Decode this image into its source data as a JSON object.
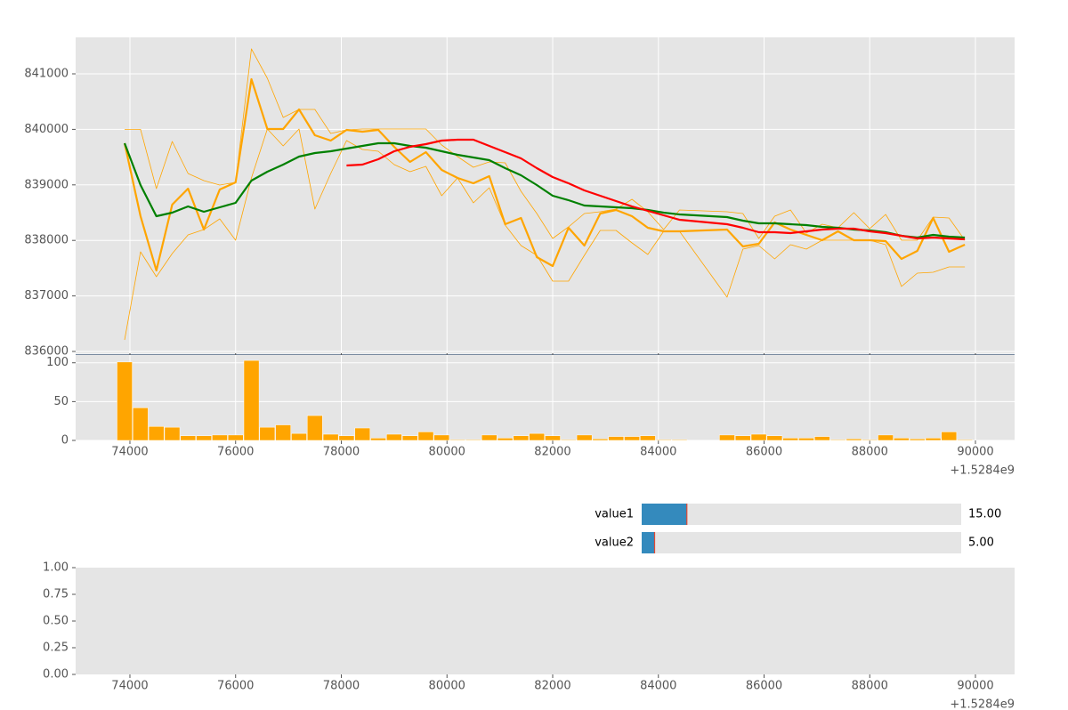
{
  "chart_data": [
    {
      "type": "line",
      "grid": true,
      "show_xtick_labels": false,
      "xlim": [
        72973,
        90741
      ],
      "xticks": [
        74000,
        76000,
        78000,
        80000,
        82000,
        84000,
        86000,
        88000,
        90000
      ],
      "ylim": [
        835968,
        841657
      ],
      "yticks": [
        836000,
        837000,
        838000,
        839000,
        840000,
        841000
      ],
      "x": [
        73900,
        74200,
        74500,
        74800,
        75100,
        75400,
        75700,
        76000,
        76300,
        76600,
        76900,
        77200,
        77500,
        77800,
        78100,
        78400,
        78700,
        79000,
        79300,
        79600,
        79900,
        80200,
        80500,
        80800,
        81100,
        81400,
        81700,
        82000,
        82300,
        82600,
        82900,
        83200,
        83500,
        83800,
        84100,
        84400,
        85300,
        85600,
        85900,
        86200,
        86500,
        86800,
        87100,
        87400,
        87700,
        88000,
        88300,
        88600,
        88900,
        89200,
        89500,
        89800
      ],
      "series": [
        {
          "color": "#ffa500",
          "linewidth": 0.8,
          "values": [
            840000,
            840000,
            838933,
            839782,
            839205,
            839077,
            838997,
            839045,
            841450,
            840920,
            840215,
            840359,
            840359,
            839926,
            839990,
            840006,
            840006,
            840006,
            840006,
            840006,
            839718,
            839510,
            839317,
            839413,
            839397,
            838885,
            838484,
            838035,
            838244,
            838484,
            838516,
            838564,
            838740,
            838516,
            838196,
            838548,
            838516,
            838484,
            838035,
            838436,
            838548,
            838131,
            838292,
            838228,
            838500,
            838212,
            838468,
            838003,
            838003,
            838420,
            838404,
            838003
          ]
        },
        {
          "color": "#ffa500",
          "linewidth": 0.8,
          "values": [
            836208,
            837795,
            837346,
            837763,
            838099,
            838196,
            838388,
            838003,
            839125,
            840006,
            839702,
            840006,
            838564,
            839205,
            839798,
            839638,
            839606,
            839365,
            839237,
            839333,
            838804,
            839125,
            838676,
            838949,
            838276,
            837907,
            837731,
            837266,
            837266,
            837731,
            838180,
            838180,
            837955,
            837747,
            838163,
            838163,
            836978,
            837843,
            837907,
            837667,
            837923,
            837843,
            838003,
            838003,
            838003,
            838003,
            837923,
            837170,
            837410,
            837426,
            837522,
            837522
          ]
        },
        {
          "color": "#ffa500",
          "linewidth": 2.2,
          "values": [
            839750,
            838436,
            837458,
            838644,
            838933,
            838196,
            838917,
            839045,
            840904,
            840006,
            840006,
            840359,
            839894,
            839798,
            839990,
            839958,
            839990,
            839686,
            839413,
            839590,
            839269,
            839125,
            839029,
            839157,
            838292,
            838404,
            837699,
            837538,
            838228,
            837907,
            838484,
            838548,
            838436,
            838228,
            838163,
            838163,
            838196,
            837891,
            837939,
            838324,
            838196,
            838099,
            838003,
            838163,
            838003,
            838003,
            837987,
            837667,
            837811,
            838404,
            837795,
            837923
          ]
        },
        {
          "color": "#008000",
          "linewidth": 2.2,
          "values": [
            839750,
            838997,
            838436,
            838500,
            838612,
            838516,
            838596,
            838676,
            839077,
            839237,
            839365,
            839510,
            839574,
            839606,
            839654,
            839702,
            839750,
            839750,
            839702,
            839670,
            839606,
            839542,
            839494,
            839445,
            839301,
            839173,
            838997,
            838804,
            838724,
            838628,
            838612,
            838596,
            838580,
            838548,
            838500,
            838468,
            838420,
            838356,
            838308,
            838308,
            838292,
            838276,
            838244,
            838228,
            838196,
            838180,
            838147,
            838083,
            838051,
            838099,
            838067,
            838051
          ]
        },
        {
          "color": "#ff0000",
          "linewidth": 2.2,
          "values": [
            null,
            null,
            null,
            null,
            null,
            null,
            null,
            null,
            null,
            null,
            null,
            null,
            null,
            null,
            839349,
            839365,
            839462,
            839606,
            839686,
            839734,
            839798,
            839814,
            839814,
            839702,
            839590,
            839478,
            839301,
            839141,
            839029,
            838901,
            838804,
            838708,
            838612,
            838532,
            838452,
            838372,
            838292,
            838228,
            838147,
            838147,
            838131,
            838163,
            838196,
            838212,
            838212,
            838163,
            838131,
            838083,
            838035,
            838051,
            838035,
            838019
          ]
        }
      ]
    },
    {
      "type": "bar",
      "grid": true,
      "color": "#ffa500",
      "x_offset": "+1.5284e9",
      "xlim": [
        72973,
        90741
      ],
      "xticks": [
        74000,
        76000,
        78000,
        80000,
        82000,
        84000,
        86000,
        88000,
        90000
      ],
      "ylim": [
        0,
        110
      ],
      "yticks": [
        0,
        50,
        100
      ],
      "x": [
        73900,
        74200,
        74500,
        74800,
        75100,
        75400,
        75700,
        76000,
        76300,
        76600,
        76900,
        77200,
        77500,
        77800,
        78100,
        78400,
        78700,
        79000,
        79300,
        79600,
        79900,
        80200,
        80500,
        80800,
        81100,
        81400,
        81700,
        82000,
        82300,
        82600,
        82900,
        83200,
        83500,
        83800,
        84100,
        84400,
        85300,
        85600,
        85900,
        86200,
        86500,
        86800,
        87100,
        87400,
        87700,
        88000,
        88300,
        88600,
        88900,
        89200,
        89500,
        89800
      ],
      "values": [
        101,
        42,
        18,
        17,
        6,
        6,
        7,
        7,
        103,
        17,
        20,
        9,
        32,
        8,
        6,
        16,
        3,
        8,
        6,
        11,
        7,
        1,
        1,
        7,
        3,
        6,
        9,
        6,
        1,
        7,
        2,
        5,
        5,
        6,
        1,
        1,
        7,
        6,
        8,
        6,
        3,
        3,
        5,
        1,
        2,
        1,
        7,
        3,
        2,
        3,
        11,
        1
      ]
    },
    {
      "type": "line",
      "grid": false,
      "x_offset": "+1.5284e9",
      "xlim": [
        72973,
        90741
      ],
      "xticks": [
        74000,
        76000,
        78000,
        80000,
        82000,
        84000,
        86000,
        88000,
        90000
      ],
      "ylim": [
        0,
        1
      ],
      "yticks": [
        {
          "value": 0,
          "label": "0.00"
        },
        {
          "value": 0.25,
          "label": "0.25"
        },
        {
          "value": 0.5,
          "label": "0.50"
        },
        {
          "value": 0.75,
          "label": "0.75"
        },
        {
          "value": 1,
          "label": "1.00"
        }
      ]
    }
  ],
  "sliders": [
    {
      "label": "value1",
      "value": 15,
      "value_label": "15.00",
      "min": 1,
      "max": 100
    },
    {
      "label": "value2",
      "value": 5,
      "value_label": "5.00",
      "min": 1,
      "max": 100
    }
  ]
}
